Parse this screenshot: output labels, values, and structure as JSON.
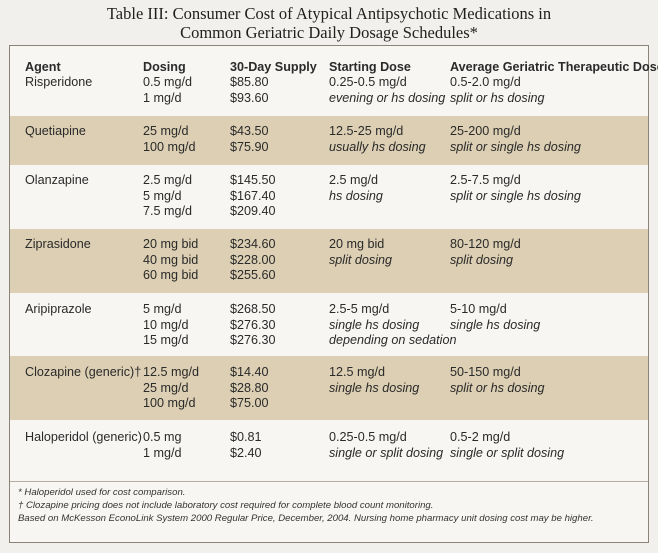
{
  "title": {
    "line1": "Table III: Consumer Cost of Atypical Antipsychotic Medications in",
    "line2": "Common Geriatric Daily Dosage Schedules*"
  },
  "header": {
    "agent": "Agent",
    "dosing": "Dosing",
    "supply": "30-Day Supply",
    "starting": "Starting Dose",
    "average": "Average Geriatric Therapeutic Dose"
  },
  "rows": [
    {
      "agent": "Risperidone",
      "dosing": [
        "0.5 mg/d",
        "1 mg/d"
      ],
      "supply": [
        "$85.80",
        "$93.60"
      ],
      "starting": [
        "0.25-0.5 mg/d",
        "evening or hs dosing"
      ],
      "average": [
        "0.5-2.0 mg/d",
        "split or hs dosing"
      ]
    },
    {
      "agent": "Quetiapine",
      "dosing": [
        "25 mg/d",
        "100 mg/d"
      ],
      "supply": [
        "$43.50",
        "$75.90"
      ],
      "starting": [
        "12.5-25 mg/d",
        "usually hs dosing"
      ],
      "average": [
        "25-200 mg/d",
        "split or single hs dosing"
      ]
    },
    {
      "agent": "Olanzapine",
      "dosing": [
        "2.5 mg/d",
        "5 mg/d",
        "7.5 mg/d"
      ],
      "supply": [
        "$145.50",
        "$167.40",
        "$209.40"
      ],
      "starting": [
        "2.5 mg/d",
        "hs dosing"
      ],
      "average": [
        "2.5-7.5 mg/d",
        "split or single hs dosing"
      ]
    },
    {
      "agent": "Ziprasidone",
      "dosing": [
        "20 mg bid",
        "40 mg bid",
        "60 mg bid"
      ],
      "supply": [
        "$234.60",
        "$228.00",
        "$255.60"
      ],
      "starting": [
        "20 mg bid",
        "split dosing"
      ],
      "average": [
        "80-120 mg/d",
        "split dosing"
      ]
    },
    {
      "agent": "Aripiprazole",
      "dosing": [
        "5 mg/d",
        "10 mg/d",
        "15 mg/d"
      ],
      "supply": [
        "$268.50",
        "$276.30",
        "$276.30"
      ],
      "starting": [
        "2.5-5 mg/d",
        "single hs dosing",
        "depending on sedation"
      ],
      "average": [
        "5-10 mg/d",
        "single hs dosing"
      ]
    },
    {
      "agent": "Clozapine (generic)†",
      "dosing": [
        "12.5 mg/d",
        "25 mg/d",
        "100 mg/d"
      ],
      "supply": [
        "$14.40",
        "$28.80",
        "$75.00"
      ],
      "starting": [
        "12.5 mg/d",
        "single hs dosing"
      ],
      "average": [
        "50-150 mg/d",
        "split or hs dosing"
      ]
    },
    {
      "agent": "Haloperidol (generic)",
      "dosing": [
        "0.5 mg",
        "1 mg/d"
      ],
      "supply": [
        "$0.81",
        "$2.40"
      ],
      "starting": [
        "0.25-0.5 mg/d",
        "single or split dosing"
      ],
      "average": [
        "0.5-2 mg/d",
        "single or split dosing"
      ]
    }
  ],
  "footnotes": {
    "f1": "* Haloperidol used for cost comparison.",
    "f2": "† Clozapine pricing does not include laboratory cost required for complete blood count monitoring.",
    "f3": "Based on McKesson EconoLink System 2000 Regular Price, December, 2004. Nursing home pharmacy unit dosing cost may be higher."
  }
}
